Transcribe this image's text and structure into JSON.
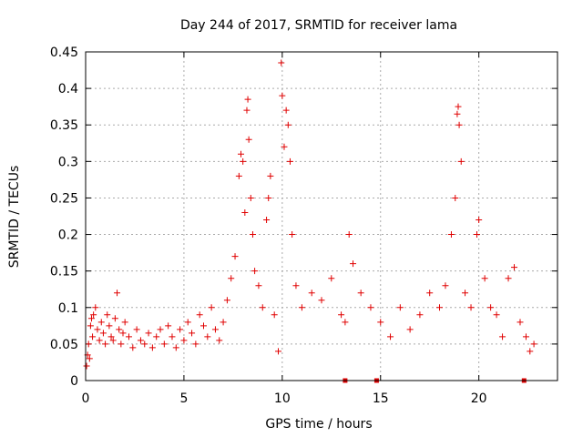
{
  "chart_data": {
    "type": "scatter",
    "title": "Day 244 of 2017, SRMTID for receiver lama",
    "xlabel": "GPS time / hours",
    "ylabel": "SRMTID / TECUs",
    "xlim": [
      0,
      24
    ],
    "ylim": [
      0,
      0.45
    ],
    "xticks": [
      0,
      5,
      10,
      15,
      20
    ],
    "xtick_labels": [
      "0",
      "5",
      "10",
      "15",
      "20"
    ],
    "yticks": [
      0,
      0.05,
      0.1,
      0.15,
      0.2,
      0.25,
      0.3,
      0.35,
      0.4,
      0.45
    ],
    "ytick_labels": [
      "0",
      "0.05",
      "0.1",
      "0.15",
      "0.2",
      "0.25",
      "0.3",
      "0.35",
      "0.4",
      "0.45"
    ],
    "grid": true,
    "marker": "+",
    "color": "#e00000",
    "series": [
      {
        "name": "SRMTID",
        "points": [
          [
            0.05,
            0.02
          ],
          [
            0.1,
            0.035
          ],
          [
            0.15,
            0.05
          ],
          [
            0.2,
            0.03
          ],
          [
            0.25,
            0.075
          ],
          [
            0.3,
            0.085
          ],
          [
            0.35,
            0.06
          ],
          [
            0.4,
            0.09
          ],
          [
            0.5,
            0.1
          ],
          [
            0.6,
            0.07
          ],
          [
            0.7,
            0.055
          ],
          [
            0.8,
            0.08
          ],
          [
            0.9,
            0.065
          ],
          [
            1.0,
            0.05
          ],
          [
            1.1,
            0.09
          ],
          [
            1.2,
            0.075
          ],
          [
            1.3,
            0.06
          ],
          [
            1.4,
            0.055
          ],
          [
            1.5,
            0.085
          ],
          [
            1.6,
            0.12
          ],
          [
            1.7,
            0.07
          ],
          [
            1.8,
            0.05
          ],
          [
            1.9,
            0.065
          ],
          [
            2.0,
            0.08
          ],
          [
            2.2,
            0.06
          ],
          [
            2.4,
            0.045
          ],
          [
            2.6,
            0.07
          ],
          [
            2.8,
            0.055
          ],
          [
            3.0,
            0.05
          ],
          [
            3.2,
            0.065
          ],
          [
            3.4,
            0.045
          ],
          [
            3.6,
            0.06
          ],
          [
            3.8,
            0.07
          ],
          [
            4.0,
            0.05
          ],
          [
            4.2,
            0.075
          ],
          [
            4.4,
            0.06
          ],
          [
            4.6,
            0.045
          ],
          [
            4.8,
            0.07
          ],
          [
            5.0,
            0.055
          ],
          [
            5.2,
            0.08
          ],
          [
            5.4,
            0.065
          ],
          [
            5.6,
            0.05
          ],
          [
            5.8,
            0.09
          ],
          [
            6.0,
            0.075
          ],
          [
            6.2,
            0.06
          ],
          [
            6.4,
            0.1
          ],
          [
            6.6,
            0.07
          ],
          [
            6.8,
            0.055
          ],
          [
            7.0,
            0.08
          ],
          [
            7.2,
            0.11
          ],
          [
            7.4,
            0.14
          ],
          [
            7.6,
            0.17
          ],
          [
            7.8,
            0.28
          ],
          [
            7.9,
            0.31
          ],
          [
            8.0,
            0.3
          ],
          [
            8.1,
            0.23
          ],
          [
            8.2,
            0.37
          ],
          [
            8.25,
            0.385
          ],
          [
            8.3,
            0.33
          ],
          [
            8.4,
            0.25
          ],
          [
            8.5,
            0.2
          ],
          [
            8.6,
            0.15
          ],
          [
            8.8,
            0.13
          ],
          [
            9.0,
            0.1
          ],
          [
            9.2,
            0.22
          ],
          [
            9.3,
            0.25
          ],
          [
            9.4,
            0.28
          ],
          [
            9.6,
            0.09
          ],
          [
            9.8,
            0.04
          ],
          [
            9.95,
            0.435
          ],
          [
            10.0,
            0.39
          ],
          [
            10.1,
            0.32
          ],
          [
            10.2,
            0.37
          ],
          [
            10.3,
            0.35
          ],
          [
            10.4,
            0.3
          ],
          [
            10.5,
            0.2
          ],
          [
            10.7,
            0.13
          ],
          [
            11.0,
            0.1
          ],
          [
            11.5,
            0.12
          ],
          [
            12.0,
            0.11
          ],
          [
            12.5,
            0.14
          ],
          [
            13.0,
            0.09
          ],
          [
            13.2,
            0.08
          ],
          [
            13.4,
            0.2
          ],
          [
            13.6,
            0.16
          ],
          [
            14.0,
            0.12
          ],
          [
            14.5,
            0.1
          ],
          [
            15.0,
            0.08
          ],
          [
            15.5,
            0.06
          ],
          [
            16.0,
            0.1
          ],
          [
            16.5,
            0.07
          ],
          [
            17.0,
            0.09
          ],
          [
            17.5,
            0.12
          ],
          [
            18.0,
            0.1
          ],
          [
            18.3,
            0.13
          ],
          [
            18.6,
            0.2
          ],
          [
            18.8,
            0.25
          ],
          [
            18.9,
            0.365
          ],
          [
            18.95,
            0.375
          ],
          [
            19.0,
            0.35
          ],
          [
            19.1,
            0.3
          ],
          [
            19.3,
            0.12
          ],
          [
            19.6,
            0.1
          ],
          [
            19.9,
            0.2
          ],
          [
            20.0,
            0.22
          ],
          [
            20.3,
            0.14
          ],
          [
            20.6,
            0.1
          ],
          [
            20.9,
            0.09
          ],
          [
            21.2,
            0.06
          ],
          [
            21.5,
            0.14
          ],
          [
            21.8,
            0.155
          ],
          [
            22.1,
            0.08
          ],
          [
            22.4,
            0.06
          ],
          [
            22.6,
            0.04
          ],
          [
            22.8,
            0.05
          ]
        ]
      }
    ],
    "baseline_markers_x": [
      13.2,
      14.8,
      22.3
    ]
  }
}
